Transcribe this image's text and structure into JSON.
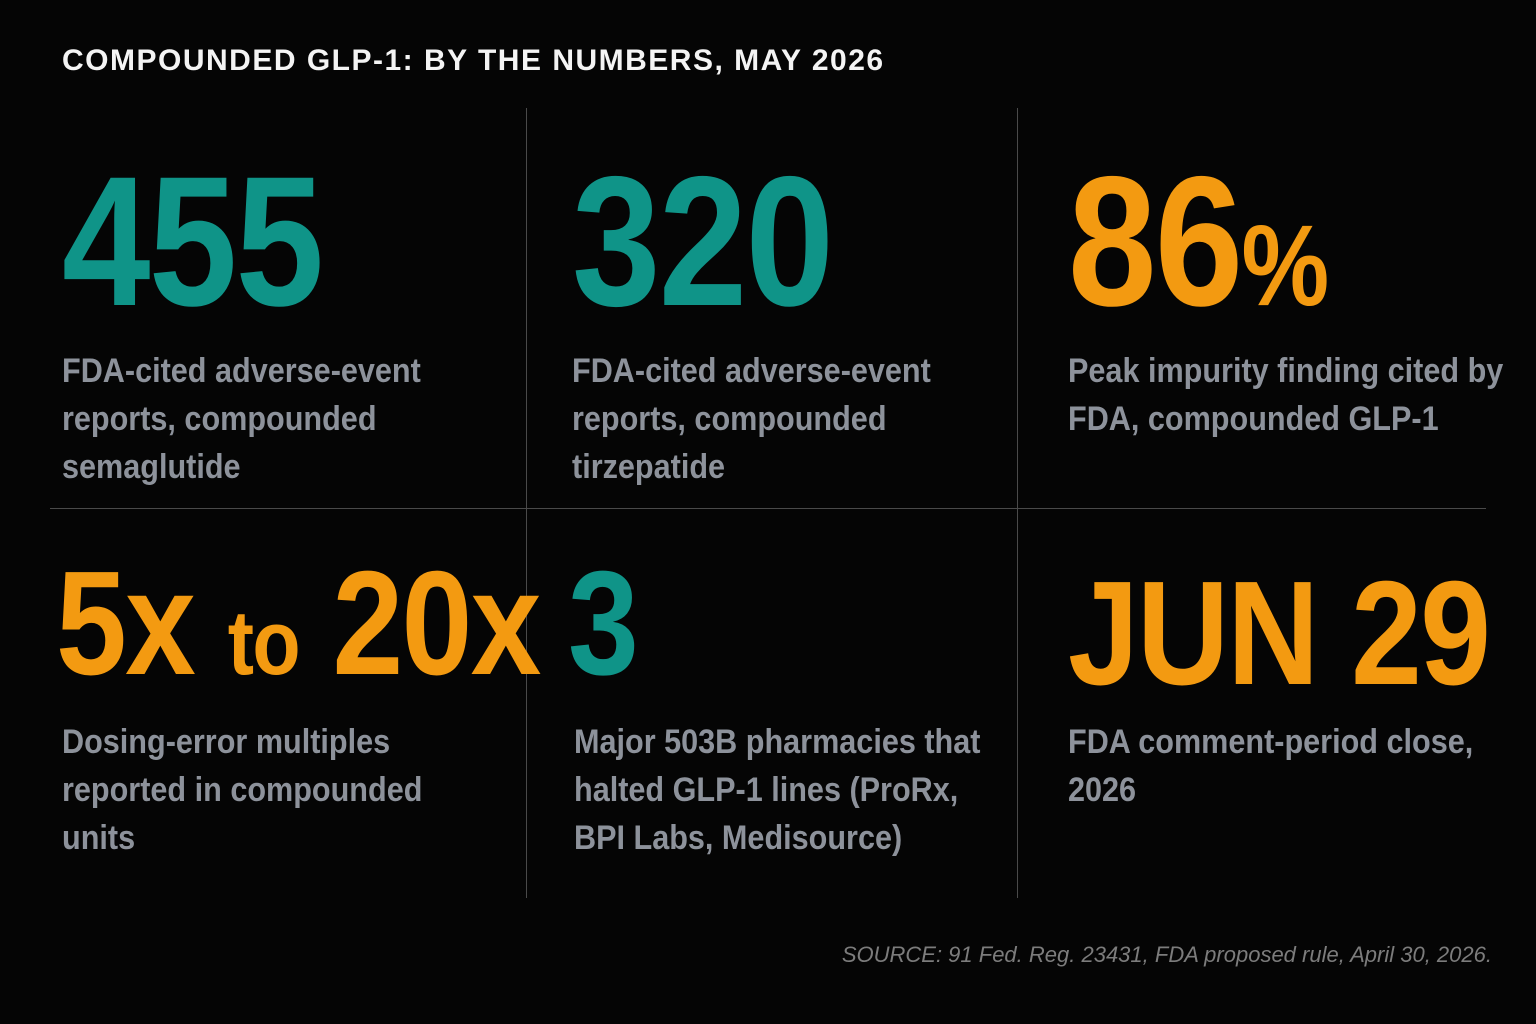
{
  "title": "COMPOUNDED GLP-1: BY THE NUMBERS, MAY 2026",
  "stats": [
    {
      "value": "455",
      "description": "FDA-cited adverse-event reports, compounded semaglutide",
      "color": "#0f9488"
    },
    {
      "value": "320",
      "description": "FDA-cited adverse-event reports, compounded tirzepatide",
      "color": "#0f9488"
    },
    {
      "value": "86",
      "value_suffix": "%",
      "description": "Peak impurity finding cited by FDA, compounded GLP-1",
      "color": "#f39a11"
    },
    {
      "value_a": "5x",
      "value_mid": "to",
      "value_b": "20x",
      "description": "Dosing-error multiples reported in compounded units",
      "color": "#f39a11"
    },
    {
      "value": "3",
      "description": "Major 503B pharmacies that halted GLP-1 lines (ProRx, BPI Labs, Medisource)",
      "color": "#0f9488"
    },
    {
      "value": "JUN 29",
      "description": "FDA comment-period close, 2026",
      "color": "#f39a11"
    }
  ],
  "source": "SOURCE: 91 Fed. Reg. 23431, FDA proposed rule, April 30, 2026."
}
